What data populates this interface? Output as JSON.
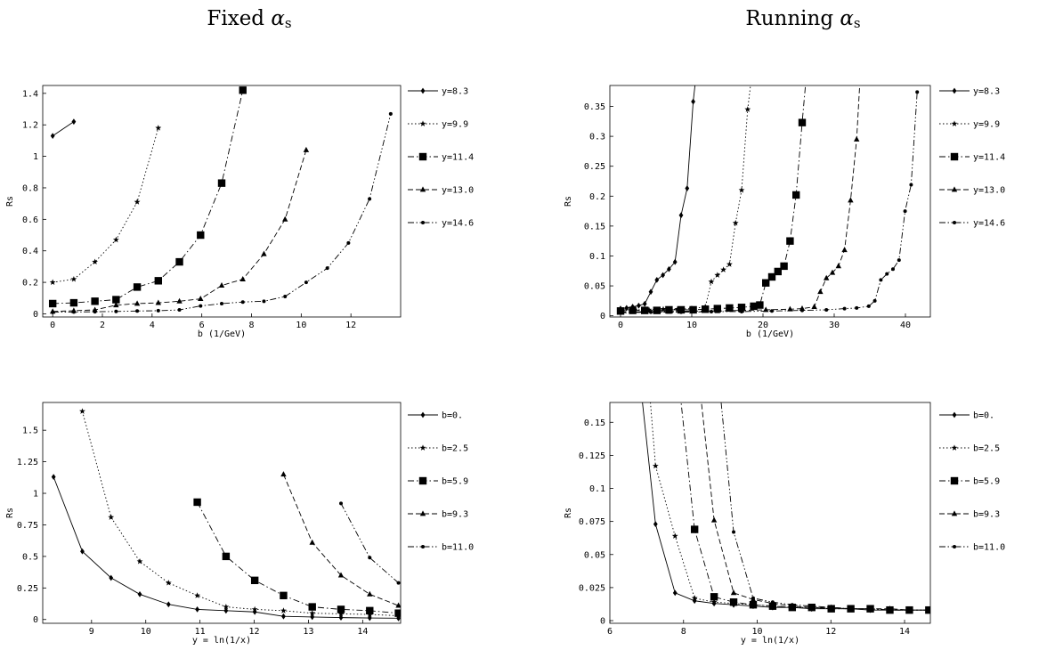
{
  "titles": {
    "left": {
      "prefix": "Fixed ",
      "alpha": "α",
      "sub": "s"
    },
    "right": {
      "prefix": "Running ",
      "alpha": "α",
      "sub": "s"
    }
  },
  "chart_data": [
    {
      "type": "line",
      "xlabel": "b  (1/GeV)",
      "ylabel": "Rs",
      "xlim": [
        -0.4,
        14.0
      ],
      "ylim": [
        -0.02,
        1.45
      ],
      "xticks": [
        0,
        2,
        4,
        6,
        8,
        10,
        12
      ],
      "xticklabels": [
        "0",
        "2",
        "4",
        "6",
        "8",
        "10",
        "12"
      ],
      "yticks": [
        0,
        0.2,
        0.4,
        0.6,
        0.8,
        1.0,
        1.2,
        1.4
      ],
      "yticklabels": [
        "0",
        "0.2",
        "0.4",
        "0.6",
        "0.8",
        "1",
        "1.2",
        "1.4"
      ],
      "grid": false,
      "legend_position": "right",
      "series": [
        {
          "name": "y=8.3",
          "style": "solid",
          "marker": "diamond",
          "x": [
            0,
            0.85
          ],
          "y": [
            1.13,
            1.22
          ]
        },
        {
          "name": "y=9.9",
          "style": "dotted",
          "marker": "star",
          "x": [
            0,
            0.85,
            1.7,
            2.55,
            3.4,
            4.25
          ],
          "y": [
            0.2,
            0.22,
            0.33,
            0.47,
            0.71,
            1.18
          ]
        },
        {
          "name": "y=11.4",
          "style": "dashdot",
          "marker": "square",
          "x": [
            0,
            0.85,
            1.7,
            2.55,
            3.4,
            4.25,
            5.1,
            5.95,
            6.8,
            7.65
          ],
          "y": [
            0.065,
            0.07,
            0.08,
            0.09,
            0.17,
            0.21,
            0.33,
            0.5,
            0.83,
            1.42
          ]
        },
        {
          "name": "y=13.0",
          "style": "dashed",
          "marker": "triangle",
          "x": [
            0,
            0.85,
            1.7,
            2.55,
            3.4,
            4.25,
            5.1,
            5.95,
            6.8,
            7.65,
            8.5,
            9.35,
            10.2
          ],
          "y": [
            0.015,
            0.02,
            0.025,
            0.055,
            0.065,
            0.07,
            0.08,
            0.095,
            0.18,
            0.22,
            0.38,
            0.6,
            1.04
          ]
        },
        {
          "name": "y=14.6",
          "style": "dashdotdot",
          "marker": "dot",
          "x": [
            0,
            0.85,
            1.7,
            2.55,
            3.4,
            4.25,
            5.1,
            5.95,
            6.8,
            7.65,
            8.5,
            9.35,
            10.2,
            11.05,
            11.9,
            12.75,
            13.6
          ],
          "y": [
            0.01,
            0.012,
            0.013,
            0.015,
            0.018,
            0.02,
            0.025,
            0.05,
            0.065,
            0.075,
            0.08,
            0.11,
            0.2,
            0.29,
            0.45,
            0.73,
            1.27
          ]
        }
      ]
    },
    {
      "type": "line",
      "xlabel": "b  (1/GeV)",
      "ylabel": "Rs",
      "xlim": [
        -1.5,
        43.5
      ],
      "ylim": [
        -0.002,
        0.385
      ],
      "xticks": [
        0,
        10,
        20,
        30,
        40
      ],
      "xticklabels": [
        "0",
        "10",
        "20",
        "30",
        "40"
      ],
      "yticks": [
        0,
        0.05,
        0.1,
        0.15,
        0.2,
        0.25,
        0.3,
        0.35
      ],
      "yticklabels": [
        "0",
        "0.05",
        "0.1",
        "0.15",
        "0.2",
        "0.25",
        "0.3",
        "0.35"
      ],
      "grid": false,
      "legend_position": "right",
      "series": [
        {
          "name": "y=8.3",
          "style": "solid",
          "marker": "diamond",
          "x": [
            0,
            0.85,
            1.7,
            2.55,
            3.4,
            4.25,
            5.1,
            5.95,
            6.8,
            7.65,
            8.5,
            9.35,
            10.2,
            10.5
          ],
          "y": [
            0.012,
            0.013,
            0.015,
            0.017,
            0.02,
            0.04,
            0.06,
            0.068,
            0.078,
            0.09,
            0.168,
            0.213,
            0.358,
            0.39
          ]
        },
        {
          "name": "y=9.9",
          "style": "dotted",
          "marker": "star",
          "x": [
            0,
            2,
            4,
            6,
            8,
            10,
            11.9,
            12.75,
            13.6,
            14.45,
            15.3,
            16.15,
            17,
            17.85,
            18.3
          ],
          "y": [
            0.01,
            0.01,
            0.01,
            0.011,
            0.011,
            0.012,
            0.015,
            0.057,
            0.068,
            0.077,
            0.086,
            0.155,
            0.21,
            0.345,
            0.39
          ]
        },
        {
          "name": "y=11.4",
          "style": "dashdot",
          "marker": "square",
          "x": [
            0,
            1.7,
            3.4,
            5.1,
            6.8,
            8.5,
            10.2,
            11.9,
            13.6,
            15.3,
            17,
            18.7,
            19.55,
            20.4,
            21.25,
            22.1,
            22.95,
            23.8,
            24.65,
            25.5,
            26.0
          ],
          "y": [
            0.008,
            0.009,
            0.009,
            0.009,
            0.01,
            0.01,
            0.01,
            0.011,
            0.012,
            0.013,
            0.014,
            0.016,
            0.018,
            0.055,
            0.065,
            0.074,
            0.083,
            0.125,
            0.202,
            0.323,
            0.39
          ]
        },
        {
          "name": "y=13.0",
          "style": "dashed",
          "marker": "triangle",
          "x": [
            0,
            3.4,
            6.8,
            10.2,
            13.6,
            17,
            20.4,
            23.8,
            25.5,
            27.2,
            28.05,
            28.9,
            29.75,
            30.6,
            31.45,
            32.3,
            33.15,
            33.6
          ],
          "y": [
            0.006,
            0.007,
            0.007,
            0.008,
            0.008,
            0.009,
            0.01,
            0.011,
            0.012,
            0.015,
            0.04,
            0.063,
            0.072,
            0.083,
            0.11,
            0.193,
            0.295,
            0.39
          ]
        },
        {
          "name": "y=14.6",
          "style": "dashdotdot",
          "marker": "dot",
          "x": [
            0,
            4.25,
            8.5,
            12.75,
            17,
            21.25,
            25.5,
            28.9,
            31.45,
            33.15,
            34.85,
            35.7,
            36.55,
            37.4,
            38.25,
            39.1,
            39.95,
            40.8,
            41.65
          ],
          "y": [
            0.005,
            0.006,
            0.006,
            0.007,
            0.007,
            0.008,
            0.009,
            0.01,
            0.012,
            0.013,
            0.016,
            0.025,
            0.06,
            0.07,
            0.078,
            0.093,
            0.175,
            0.219,
            0.374
          ]
        }
      ]
    },
    {
      "type": "line",
      "xlabel": "y = ln(1/x)",
      "ylabel": "Rs",
      "xlim": [
        8.1,
        14.7
      ],
      "ylim": [
        -0.03,
        1.72
      ],
      "xticks": [
        9,
        10,
        11,
        12,
        13,
        14
      ],
      "xticklabels": [
        "9",
        "10",
        "11",
        "12",
        "13",
        "14"
      ],
      "yticks": [
        0,
        0.25,
        0.5,
        0.75,
        1.0,
        1.25,
        1.5
      ],
      "yticklabels": [
        "0",
        "0.25",
        "0.5",
        "0.75",
        "1",
        "1.25",
        "1.5"
      ],
      "grid": false,
      "legend_position": "right",
      "series": [
        {
          "name": "b=0.",
          "style": "solid",
          "marker": "diamond",
          "x": [
            8.3,
            8.83,
            9.36,
            9.89,
            10.42,
            10.95,
            11.48,
            12.01,
            12.54,
            13.07,
            13.6,
            14.13,
            14.66
          ],
          "y": [
            1.13,
            0.54,
            0.33,
            0.2,
            0.12,
            0.08,
            0.07,
            0.06,
            0.025,
            0.02,
            0.015,
            0.012,
            0.01
          ]
        },
        {
          "name": "b=2.5",
          "style": "dotted",
          "marker": "star",
          "x": [
            8.83,
            9.36,
            9.89,
            10.42,
            10.95,
            11.48,
            12.01,
            12.54,
            13.07,
            13.6,
            14.13,
            14.66
          ],
          "y": [
            1.65,
            0.81,
            0.46,
            0.29,
            0.19,
            0.1,
            0.08,
            0.07,
            0.05,
            0.045,
            0.04,
            0.03
          ]
        },
        {
          "name": "b=5.9",
          "style": "dashdot",
          "marker": "square",
          "x": [
            10.95,
            11.48,
            12.01,
            12.54,
            13.07,
            13.6,
            14.13,
            14.66
          ],
          "y": [
            0.93,
            0.5,
            0.31,
            0.19,
            0.1,
            0.08,
            0.07,
            0.05
          ]
        },
        {
          "name": "b=9.3",
          "style": "dashed",
          "marker": "triangle",
          "x": [
            12.54,
            13.07,
            13.6,
            14.13,
            14.66
          ],
          "y": [
            1.15,
            0.61,
            0.35,
            0.2,
            0.11
          ]
        },
        {
          "name": "b=11.0",
          "style": "dashdotdot",
          "marker": "dot",
          "x": [
            13.6,
            14.13,
            14.66
          ],
          "y": [
            0.92,
            0.49,
            0.29
          ]
        }
      ]
    },
    {
      "type": "line",
      "xlabel": "y = ln(1/x)",
      "ylabel": "Rs",
      "xlim": [
        6.0,
        14.7
      ],
      "ylim": [
        -0.002,
        0.165
      ],
      "xticks": [
        6,
        8,
        10,
        12,
        14
      ],
      "xticklabels": [
        "6",
        "8",
        "10",
        "12",
        "14"
      ],
      "yticks": [
        0,
        0.025,
        0.05,
        0.075,
        0.1,
        0.125,
        0.15
      ],
      "yticklabels": [
        "0",
        "0.025",
        "0.05",
        "0.075",
        "0.1",
        "0.125",
        "0.15"
      ],
      "grid": false,
      "legend_position": "right",
      "series": [
        {
          "name": "b=0.",
          "style": "solid",
          "marker": "diamond",
          "x": [
            6.75,
            7.24,
            7.77,
            8.3,
            8.83,
            9.36,
            9.89,
            10.42,
            10.95,
            11.48,
            12.01,
            12.54,
            13.07,
            13.6,
            14.13,
            14.66
          ],
          "y": [
            0.2,
            0.073,
            0.021,
            0.015,
            0.013,
            0.012,
            0.011,
            0.01,
            0.01,
            0.009,
            0.009,
            0.009,
            0.008,
            0.008,
            0.008,
            0.008
          ]
        },
        {
          "name": "b=2.5",
          "style": "dotted",
          "marker": "star",
          "x": [
            7.0,
            7.24,
            7.77,
            8.3,
            8.83,
            9.36,
            9.89,
            10.42,
            10.95,
            11.48,
            12.01,
            12.54,
            13.07,
            13.6,
            14.13,
            14.66
          ],
          "y": [
            0.2,
            0.117,
            0.064,
            0.017,
            0.014,
            0.013,
            0.012,
            0.011,
            0.01,
            0.01,
            0.009,
            0.009,
            0.009,
            0.008,
            0.008,
            0.008
          ]
        },
        {
          "name": "b=5.9",
          "style": "dashdot",
          "marker": "square",
          "x": [
            7.8,
            8.3,
            8.83,
            9.36,
            9.89,
            10.42,
            10.95,
            11.48,
            12.01,
            12.54,
            13.07,
            13.6,
            14.13,
            14.66
          ],
          "y": [
            0.2,
            0.069,
            0.018,
            0.014,
            0.012,
            0.011,
            0.01,
            0.01,
            0.009,
            0.009,
            0.009,
            0.008,
            0.008,
            0.008
          ]
        },
        {
          "name": "b=9.3",
          "style": "dashed",
          "marker": "triangle",
          "x": [
            8.35,
            8.83,
            9.36,
            9.89,
            10.42,
            10.95,
            11.48,
            12.01,
            12.54,
            13.07,
            13.6,
            14.13,
            14.66
          ],
          "y": [
            0.2,
            0.076,
            0.021,
            0.016,
            0.013,
            0.011,
            0.01,
            0.01,
            0.009,
            0.009,
            0.009,
            0.008,
            0.008
          ]
        },
        {
          "name": "b=11.0",
          "style": "dashdotdot",
          "marker": "dot",
          "x": [
            8.9,
            9.36,
            9.89,
            10.42,
            10.95,
            11.48,
            12.01,
            12.54,
            13.07,
            13.6,
            14.13,
            14.66
          ],
          "y": [
            0.2,
            0.067,
            0.017,
            0.014,
            0.012,
            0.011,
            0.01,
            0.009,
            0.009,
            0.008,
            0.008,
            0.008
          ]
        }
      ]
    }
  ]
}
